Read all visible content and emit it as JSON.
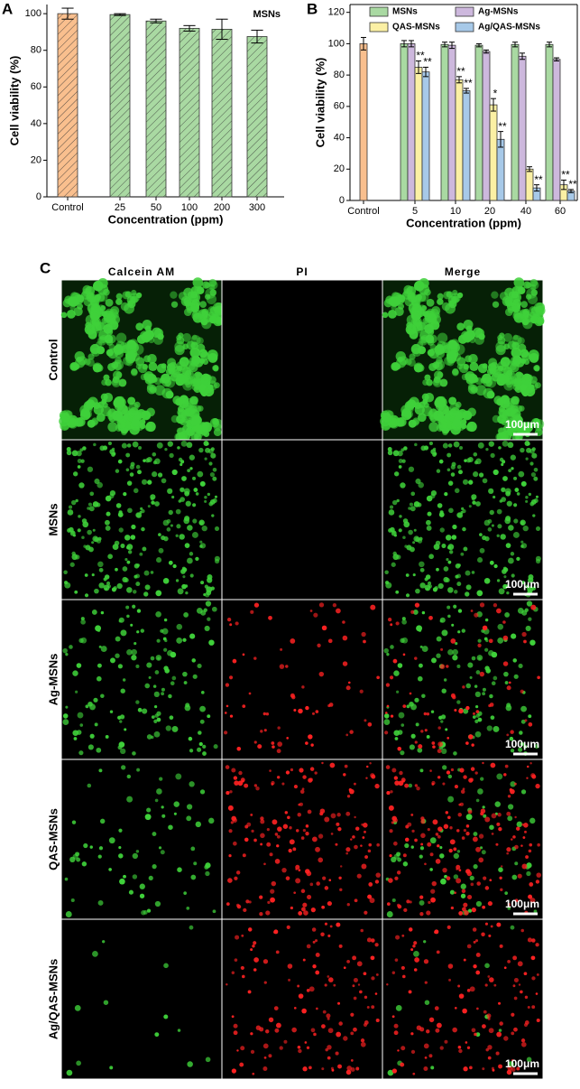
{
  "chart_data": [
    {
      "type": "bar",
      "panel": "A",
      "annotation": "MSNs",
      "xlabel": "Concentration (ppm)",
      "ylabel": "Cell viability (%)",
      "categories": [
        "Control",
        "25",
        "50",
        "100",
        "200",
        "300"
      ],
      "values": [
        100,
        99.5,
        96,
        92,
        91.5,
        87.5
      ],
      "errors": [
        3,
        0.5,
        1,
        1.5,
        5.5,
        3.5
      ],
      "colors": [
        "#f9bf8e",
        "#a9d9a2",
        "#a9d9a2",
        "#a9d9a2",
        "#a9d9a2",
        "#a9d9a2"
      ],
      "hatch": true,
      "ylim": [
        0,
        105
      ],
      "yticks": [
        0,
        20,
        40,
        60,
        80,
        100
      ]
    },
    {
      "type": "grouped_bar",
      "panel": "B",
      "xlabel": "Concentration (ppm)",
      "ylabel": "Cell viability (%)",
      "categories": [
        "Control",
        "5",
        "10",
        "20",
        "40",
        "60"
      ],
      "control": {
        "values": [
          100,
          null,
          null,
          null,
          null,
          null
        ],
        "errors": [
          4,
          null,
          null,
          null,
          null,
          null
        ],
        "color": "#f9bf8e"
      },
      "series": [
        {
          "name": "MSNs",
          "color": "#a9d9a2",
          "values": [
            null,
            100,
            99.5,
            99,
            99.5,
            99.5
          ],
          "errors": [
            null,
            2,
            1.5,
            1,
            1.5,
            1.5
          ]
        },
        {
          "name": "Ag-MSNs",
          "color": "#cdb8dd",
          "values": [
            null,
            100,
            99,
            95,
            92,
            90
          ],
          "errors": [
            null,
            2,
            2,
            1,
            2,
            1
          ]
        },
        {
          "name": "QAS-MSNs",
          "color": "#fbf0a4",
          "values": [
            null,
            85,
            77,
            61,
            20,
            10
          ],
          "errors": [
            null,
            4,
            2,
            4,
            1.5,
            3
          ],
          "significance": [
            null,
            "**",
            "**",
            "*",
            null,
            "**"
          ]
        },
        {
          "name": "Ag/QAS-MSNs",
          "color": "#a7c9e8",
          "values": [
            null,
            82,
            70,
            39,
            8,
            6
          ],
          "errors": [
            null,
            3,
            1.5,
            5,
            2,
            1
          ],
          "significance": [
            null,
            "**",
            "**",
            "**",
            "**",
            "**"
          ]
        }
      ],
      "ylim": [
        0,
        125
      ],
      "yticks": [
        0,
        20,
        40,
        60,
        80,
        100,
        120
      ]
    }
  ],
  "images": {
    "panel": "C",
    "columns": [
      "Calcein AM",
      "PI",
      "Merge"
    ],
    "rows": [
      "Control",
      "MSNs",
      "Ag-MSNs",
      "QAS-MSNs",
      "Ag/QAS-MSNs"
    ],
    "scale_bar": "100μm"
  }
}
